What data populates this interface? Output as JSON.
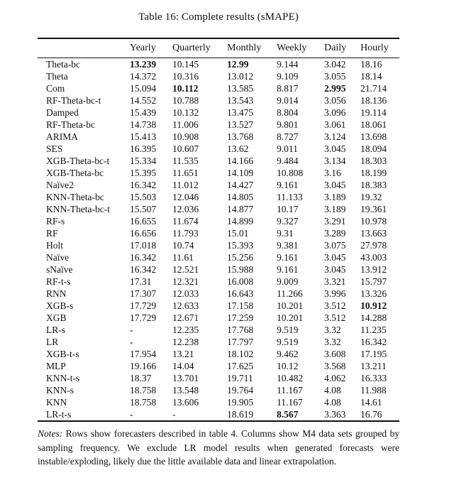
{
  "title": "Table 16: Complete results (sMAPE)",
  "table": {
    "columns": [
      "Yearly",
      "Quarterly",
      "Monthly",
      "Weekly",
      "Daily",
      "Hourly"
    ],
    "rows": [
      {
        "model": "Theta-bc",
        "values": [
          "13.239",
          "10.145",
          "12.99",
          "9.144",
          "3.042",
          "18.16"
        ],
        "bold": [
          0,
          2
        ]
      },
      {
        "model": "Theta",
        "values": [
          "14.372",
          "10.316",
          "13.012",
          "9.109",
          "3.055",
          "18.14"
        ],
        "bold": []
      },
      {
        "model": "Com",
        "values": [
          "15.094",
          "10.112",
          "13.585",
          "8.817",
          "2.995",
          "21.714"
        ],
        "bold": [
          1,
          4
        ]
      },
      {
        "model": "RF-Theta-bc-t",
        "values": [
          "14.552",
          "10.788",
          "13.543",
          "9.014",
          "3.056",
          "18.136"
        ],
        "bold": []
      },
      {
        "model": "Damped",
        "values": [
          "15.439",
          "10.132",
          "13.475",
          "8.804",
          "3.096",
          "19.114"
        ],
        "bold": []
      },
      {
        "model": "RF-Theta-bc",
        "values": [
          "14.738",
          "11.006",
          "13.527",
          "9.801",
          "3.061",
          "18.061"
        ],
        "bold": []
      },
      {
        "model": "ARIMA",
        "values": [
          "15.413",
          "10.908",
          "13.768",
          "8.727",
          "3.124",
          "13.698"
        ],
        "bold": []
      },
      {
        "model": "SES",
        "values": [
          "16.395",
          "10.607",
          "13.62",
          "9.011",
          "3.045",
          "18.094"
        ],
        "bold": []
      },
      {
        "model": "XGB-Theta-bc-t",
        "values": [
          "15.334",
          "11.535",
          "14.166",
          "9.484",
          "3.134",
          "18.303"
        ],
        "bold": []
      },
      {
        "model": "XGB-Theta-bc",
        "values": [
          "15.395",
          "11.651",
          "14.109",
          "10.808",
          "3.16",
          "18.199"
        ],
        "bold": []
      },
      {
        "model": "Naïve2",
        "values": [
          "16.342",
          "11.012",
          "14.427",
          "9.161",
          "3.045",
          "18.383"
        ],
        "bold": []
      },
      {
        "model": "KNN-Theta-bc",
        "values": [
          "15.503",
          "12.046",
          "14.805",
          "11.133",
          "3.189",
          "19.32"
        ],
        "bold": []
      },
      {
        "model": "KNN-Theta-bc-t",
        "values": [
          "15.507",
          "12.036",
          "14.877",
          "10.17",
          "3.189",
          "19.361"
        ],
        "bold": []
      },
      {
        "model": "RF-s",
        "values": [
          "16.655",
          "11.674",
          "14.899",
          "9.327",
          "3.291",
          "10.978"
        ],
        "bold": []
      },
      {
        "model": "RF",
        "values": [
          "16.656",
          "11.793",
          "15.01",
          "9.31",
          "3.289",
          "13.663"
        ],
        "bold": []
      },
      {
        "model": "Holt",
        "values": [
          "17.018",
          "10.74",
          "15.393",
          "9.381",
          "3.075",
          "27.978"
        ],
        "bold": []
      },
      {
        "model": "Naïve",
        "values": [
          "16.342",
          "11.61",
          "15.256",
          "9.161",
          "3.045",
          "43.003"
        ],
        "bold": []
      },
      {
        "model": "sNaïve",
        "values": [
          "16.342",
          "12.521",
          "15.988",
          "9.161",
          "3.045",
          "13.912"
        ],
        "bold": []
      },
      {
        "model": "RF-t-s",
        "values": [
          "17.31",
          "12.321",
          "16.008",
          "9.009",
          "3.321",
          "15.797"
        ],
        "bold": []
      },
      {
        "model": "RNN",
        "values": [
          "17.307",
          "12.033",
          "16.643",
          "11.266",
          "3.996",
          "13.326"
        ],
        "bold": []
      },
      {
        "model": "XGB-s",
        "values": [
          "17.729",
          "12.633",
          "17.158",
          "10.201",
          "3.512",
          "10.912"
        ],
        "bold": [
          5
        ]
      },
      {
        "model": "XGB",
        "values": [
          "17.729",
          "12.671",
          "17.259",
          "10.201",
          "3.512",
          "14.288"
        ],
        "bold": []
      },
      {
        "model": "LR-s",
        "values": [
          "-",
          "12.235",
          "17.768",
          "9.519",
          "3.32",
          "11.235"
        ],
        "bold": []
      },
      {
        "model": "LR",
        "values": [
          "-",
          "12.238",
          "17.797",
          "9.519",
          "3.32",
          "16.342"
        ],
        "bold": []
      },
      {
        "model": "XGB-t-s",
        "values": [
          "17.954",
          "13.21",
          "18.102",
          "9.462",
          "3.608",
          "17.195"
        ],
        "bold": []
      },
      {
        "model": "MLP",
        "values": [
          "19.166",
          "14.04",
          "17.625",
          "10.12",
          "3.568",
          "13.211"
        ],
        "bold": []
      },
      {
        "model": "KNN-t-s",
        "values": [
          "18.37",
          "13.701",
          "19.711",
          "10.482",
          "4.062",
          "16.333"
        ],
        "bold": []
      },
      {
        "model": "KNN-s",
        "values": [
          "18.758",
          "13.548",
          "19.764",
          "11.167",
          "4.08",
          "11.988"
        ],
        "bold": []
      },
      {
        "model": "KNN",
        "values": [
          "18.758",
          "13.606",
          "19.905",
          "11.167",
          "4.08",
          "14.61"
        ],
        "bold": []
      },
      {
        "model": "LR-t-s",
        "values": [
          "-",
          "-",
          "18.619",
          "8.567",
          "3.363",
          "16.76"
        ],
        "bold": [
          3
        ]
      }
    ]
  },
  "notes": {
    "label": "Notes:",
    "text": " Rows show forecasters described in table 4. Columns show M4 data sets grouped by sampling frequency. We exclude LR model results when generated forecasts were instable/exploding, likely due the little available data and linear extrapolation."
  }
}
